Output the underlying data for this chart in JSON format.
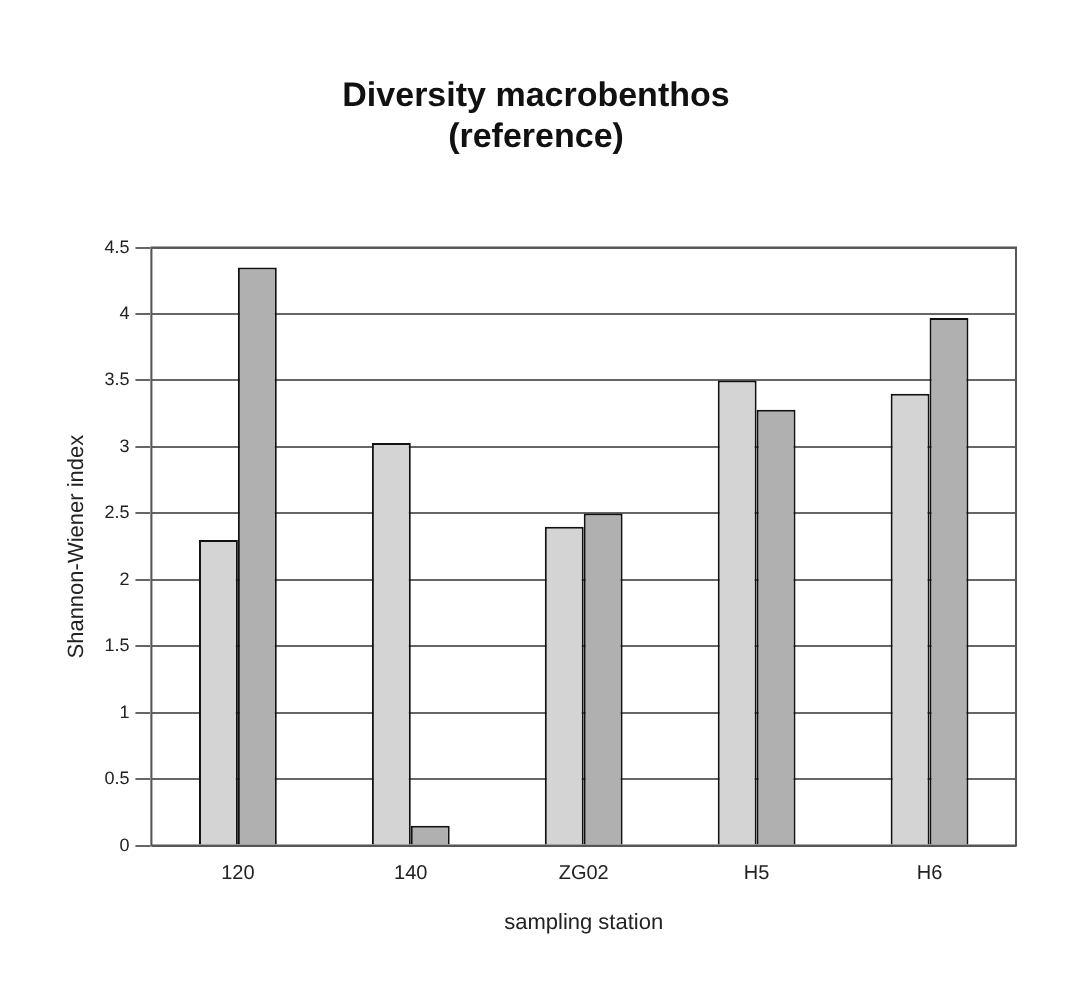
{
  "chart_data": {
    "type": "bar",
    "title": [
      "Diversity macrobenthos",
      "(reference)"
    ],
    "xlabel": "sampling station",
    "ylabel": "Shannon-Wiener index",
    "categories": [
      "120",
      "140",
      "ZG02",
      "H5",
      "H6"
    ],
    "series": [
      {
        "color": "#d4d4d4",
        "values": [
          2.3,
          3.03,
          2.4,
          3.5,
          3.4
        ]
      },
      {
        "color": "#b0b0b0",
        "values": [
          4.35,
          0.15,
          2.5,
          3.28,
          3.97
        ]
      }
    ],
    "ylim": [
      0,
      4.5
    ],
    "yticks": [
      0,
      0.5,
      1,
      1.5,
      2,
      2.5,
      3,
      3.5,
      4,
      4.5
    ],
    "grid": "y",
    "legend": false
  }
}
